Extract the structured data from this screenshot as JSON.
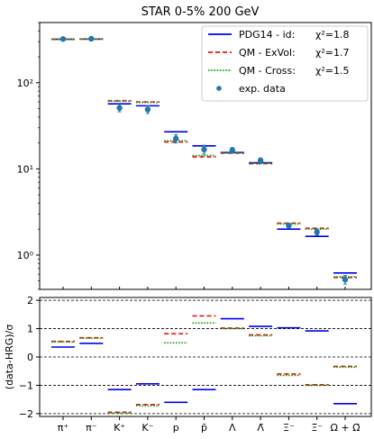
{
  "title": "STAR 0-5% 200 GeV",
  "colors": {
    "pdg": "#0000ee",
    "exvol": "#ee1111",
    "cross": "#119911",
    "data": "#1f77b4"
  },
  "legend": [
    {
      "label": "PDG14 - id:",
      "chi": "χ²=1.8",
      "style": "solid",
      "color": "#0000ee"
    },
    {
      "label": "QM - ExVol:",
      "chi": "χ²=1.7",
      "style": "dashed",
      "color": "#ee1111"
    },
    {
      "label": "QM - Cross:",
      "chi": "χ²=1.5",
      "style": "dotted",
      "color": "#119911"
    },
    {
      "label": "exp. data",
      "chi": "",
      "style": "marker",
      "color": "#1f77b4"
    }
  ],
  "chart_data": [
    {
      "type": "scatter",
      "title": "STAR 0-5% 200 GeV",
      "yscale": "log",
      "ylim": [
        0.4,
        500
      ],
      "yticks": [
        "10⁰",
        "10¹",
        "10²"
      ],
      "categories": [
        "π⁺",
        "π⁻",
        "K⁺",
        "K⁻",
        "p",
        "p̄",
        "Λ",
        "Λ̄",
        "Ξ⁻",
        "Ξ̄⁻",
        "Ω + Ω̄"
      ],
      "series": [
        {
          "name": "PDG14 - id:",
          "chi2": 1.8,
          "style": "solid",
          "values": [
            320,
            322,
            57,
            54,
            27,
            18.5,
            15.5,
            11.8,
            2.0,
            1.65,
            0.62
          ]
        },
        {
          "name": "QM - ExVol:",
          "chi2": 1.7,
          "style": "dashed",
          "values": [
            320,
            322,
            62,
            60,
            20.5,
            13.8,
            15.2,
            11.5,
            2.35,
            2.05,
            0.55
          ]
        },
        {
          "name": "QM - Cross:",
          "chi2": 1.5,
          "style": "dotted",
          "values": [
            320,
            322,
            61,
            59,
            21.2,
            14.3,
            15.3,
            11.6,
            2.3,
            2.0,
            0.56
          ]
        },
        {
          "name": "exp. data",
          "style": "marker",
          "values": [
            322,
            324,
            51,
            49,
            22.5,
            16.8,
            16.5,
            12.5,
            2.2,
            1.85,
            0.52
          ],
          "errors": [
            8,
            8,
            5,
            5,
            2.5,
            2.0,
            1.2,
            0.9,
            0.15,
            0.15,
            0.06
          ]
        }
      ]
    },
    {
      "type": "scatter",
      "ylabel": "(data-HRG)/σ",
      "ylim": [
        -2.1,
        2.1
      ],
      "yticks": [
        "−2",
        "−1",
        "0",
        "1",
        "2"
      ],
      "categories": [
        "π⁺",
        "π⁻",
        "K⁺",
        "K⁻",
        "p",
        "p̄",
        "Λ",
        "Λ̄",
        "Ξ⁻",
        "Ξ̄⁻",
        "Ω + Ω̄"
      ],
      "series": [
        {
          "name": "PDG14 - id:",
          "values": [
            0.35,
            0.48,
            -1.15,
            -0.95,
            -1.6,
            -1.15,
            1.35,
            1.08,
            1.03,
            0.92,
            -1.65
          ]
        },
        {
          "name": "QM - ExVol:",
          "values": [
            0.55,
            0.68,
            -1.95,
            -1.68,
            0.82,
            1.45,
            1.02,
            0.78,
            -0.6,
            -0.98,
            -0.33
          ]
        },
        {
          "name": "QM - Cross:",
          "values": [
            0.53,
            0.66,
            -1.98,
            -1.72,
            0.5,
            1.2,
            1.0,
            0.75,
            -0.65,
            -1.0,
            -0.36
          ]
        }
      ]
    }
  ]
}
